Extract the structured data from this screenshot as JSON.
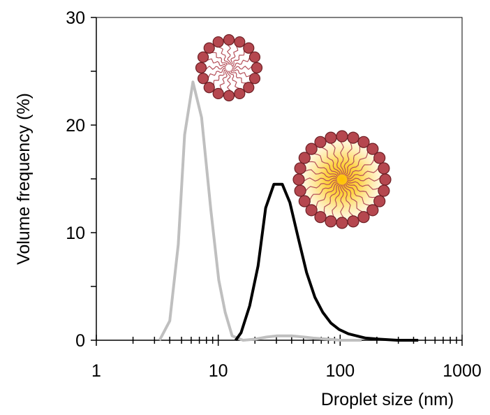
{
  "chart_data": {
    "type": "line",
    "xlabel": "Droplet size (nm)",
    "ylabel": "Volume frequency (%)",
    "xscale": "log",
    "xlim": [
      1,
      1000
    ],
    "xticks": [
      1,
      10,
      100,
      1000
    ],
    "xminorticks": [
      2,
      3,
      4,
      5,
      6,
      7,
      8,
      9,
      20,
      30,
      40,
      50,
      60,
      70,
      80,
      90,
      200,
      300,
      400,
      500,
      600,
      700,
      800,
      900
    ],
    "ylim": [
      0,
      30
    ],
    "yticks": [
      0,
      10,
      20,
      30
    ],
    "yminorticks": [
      5,
      15,
      25
    ],
    "series": [
      {
        "color": "#bfbfbf",
        "x": [
          3.3,
          4.0,
          4.7,
          5.3,
          6.2,
          7.3,
          8.7,
          10.1,
          11.4,
          13.0,
          16,
          20,
          25,
          30,
          40,
          50,
          60,
          80,
          100,
          150
        ],
        "values": [
          0,
          1.8,
          8.9,
          19.1,
          24.0,
          20.7,
          12.1,
          5.6,
          2.6,
          0.4,
          0,
          0.1,
          0.3,
          0.4,
          0.4,
          0.3,
          0.2,
          0.1,
          0,
          0
        ]
      },
      {
        "color": "#000000",
        "x": [
          13.9,
          15.4,
          18.1,
          21.2,
          24.5,
          28.6,
          33.5,
          38.7,
          45.3,
          53,
          62,
          72,
          84,
          98,
          117,
          137,
          162,
          211,
          294,
          437
        ],
        "values": [
          0,
          0.7,
          3.2,
          6.9,
          12.3,
          14.5,
          14.5,
          12.8,
          9.5,
          6.3,
          4.0,
          2.6,
          1.6,
          1.0,
          0.6,
          0.4,
          0.2,
          0.1,
          0,
          0
        ]
      }
    ]
  }
}
